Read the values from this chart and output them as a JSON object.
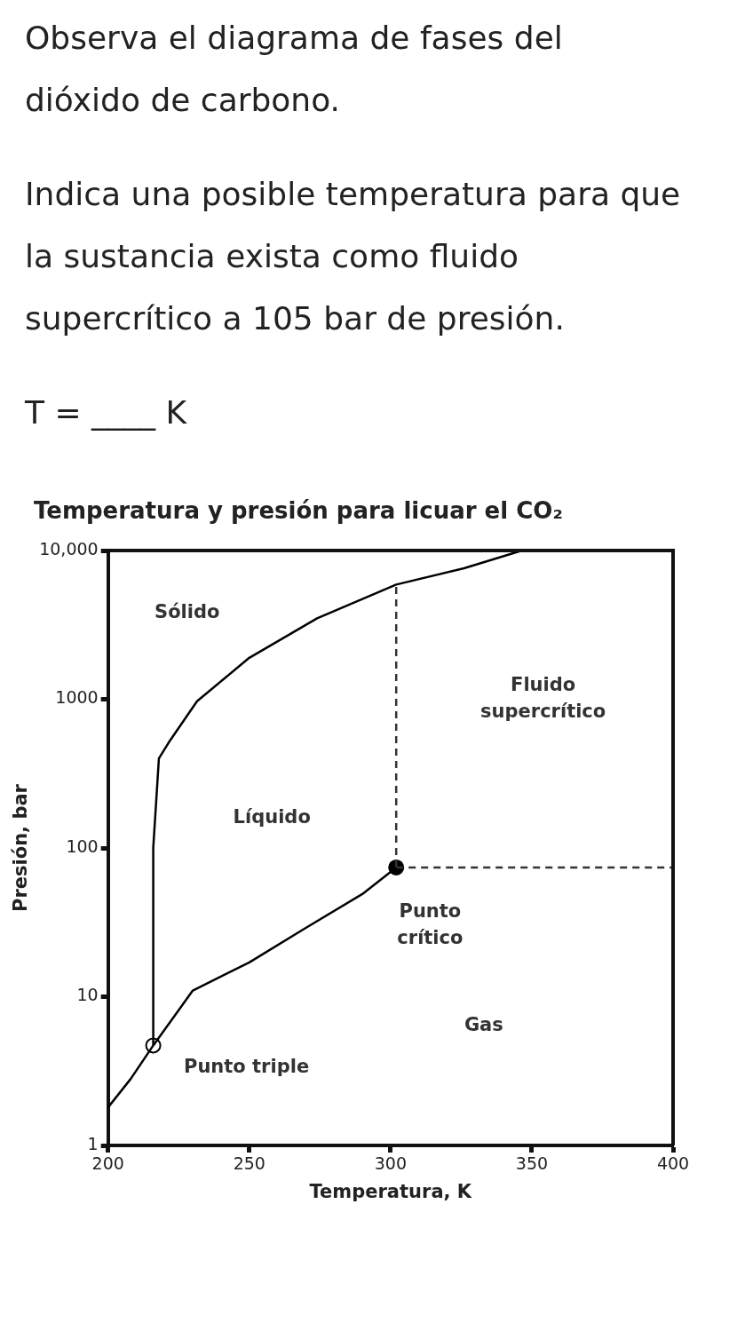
{
  "chart_data": {
    "type": "line",
    "title": "Temperatura y presión para licuar el CO₂",
    "xlabel": "Temperatura, K",
    "ylabel": "Presión, bar",
    "xlim": [
      200,
      400
    ],
    "xticks": [
      200,
      250,
      300,
      350,
      400
    ],
    "ylim": [
      1,
      10000
    ],
    "yticks": [
      1,
      10,
      100,
      1000,
      {
        "value": 10000,
        "label": "10,000"
      }
    ],
    "log": "y",
    "grid": false,
    "legend": false,
    "series": [
      {
        "color": "#000000",
        "x": [
          200,
          208,
          216
        ],
        "values": [
          1.8,
          2.8,
          4.7
        ]
      },
      {
        "color": "#000000",
        "x": [
          216,
          216,
          218,
          222,
          231.5,
          250,
          274,
          302,
          326,
          346.5
        ],
        "values": [
          4.7,
          100,
          400,
          530,
          970,
          1900,
          3500,
          5900,
          7600,
          10000
        ]
      },
      {
        "color": "#000000",
        "x": [
          216,
          230,
          250,
          270,
          290,
          302
        ],
        "values": [
          4.7,
          11,
          17,
          29,
          49,
          74
        ]
      },
      {
        "color": "#333333",
        "line_style": "dashed",
        "x": [
          302,
          302
        ],
        "values": [
          74,
          5900
        ]
      },
      {
        "color": "#333333",
        "line_style": "dashed",
        "x": [
          302,
          400
        ],
        "values": [
          74,
          74
        ]
      },
      {
        "type": "scatter",
        "color": "#ffffff",
        "marker": "circle",
        "x": [
          216
        ],
        "values": [
          4.7
        ]
      },
      {
        "type": "scatter",
        "color": "#000000",
        "marker": "circle",
        "x": [
          302
        ],
        "values": [
          74
        ]
      }
    ],
    "annotations": [
      "Observa el diagrama de fases del dióxido de carbono.",
      "Indica una posible temperatura para que la sustancia exista como fluido supercrítico a 105 bar de presión.",
      "T = ____ K",
      "Sólido",
      "Líquido",
      "Fluido supercrítico",
      "Punto crítico",
      "Gas",
      "Punto triple"
    ]
  }
}
